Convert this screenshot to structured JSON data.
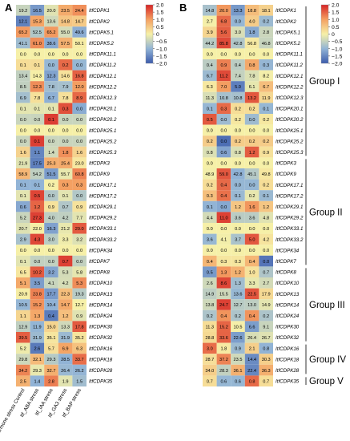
{
  "chart_data": [
    {
      "type": "heatmap",
      "panel": "A",
      "columns": [
        "Itf_hormone stress Control",
        "Itf_ABA stress",
        "Itf_IAA stress",
        "Itf_GA3 stress",
        "Itf_BAP stress"
      ],
      "rows": [
        "ItfCDPK1",
        "ItfCDPK2",
        "ItfCDPK5.1",
        "ItfCDPK5.2",
        "ItfCDPK11.1",
        "ItfCDPK11.2",
        "ItfCDPK12.1",
        "ItfCDPK12.2",
        "ItfCDPK12.3",
        "ItfCDPK20.1",
        "ItfCDPK20.2",
        "ItfCDPK25.1",
        "ItfCDPK25.2",
        "ItfCDPK25.3",
        "ItfCDPK3",
        "ItfCDPK9",
        "ItfCDPK17.1",
        "ItfCDPK17.2",
        "ItfCDPK29.1",
        "ItfCDPK29.2",
        "ItfCDPK33.1",
        "ItfCDPK33.2",
        "ItfCDPK34",
        "ItfCDPK7",
        "ItfCDPK8",
        "ItfCDPK10",
        "ItfCDPK13",
        "ItfCDPK14",
        "ItfCDPK24",
        "ItfCDPK30",
        "ItfCDPK32",
        "ItfCDPK16",
        "ItfCDPK18",
        "ItfCDPK28",
        "ItfCDPK35"
      ],
      "values": [
        [
          "19.2",
          "16.5",
          "20.0",
          "23.5",
          "24.4"
        ],
        [
          "12.1",
          "15.3",
          "13.6",
          "14.8",
          "14.7"
        ],
        [
          "65.2",
          "52.5",
          "65.2",
          "55.0",
          "49.6"
        ],
        [
          "41.1",
          "61.0",
          "38.6",
          "57.5",
          "50.1"
        ],
        [
          "0.0",
          "0.0",
          "0.0",
          "0.0",
          "0.0"
        ],
        [
          "0.1",
          "0.1",
          "0.0",
          "0.2",
          "0.0"
        ],
        [
          "13.4",
          "14.3",
          "12.3",
          "14.6",
          "16.8"
        ],
        [
          "8.5",
          "12.3",
          "7.8",
          "7.9",
          "12.0"
        ],
        [
          "6.9",
          "7.8",
          "6.7",
          "7.8",
          "8.9"
        ],
        [
          "0.1",
          "0.1",
          "0.1",
          "0.3",
          "0.0"
        ],
        [
          "0.0",
          "0.0",
          "0.1",
          "0.0",
          "0.0"
        ],
        [
          "0.0",
          "0.0",
          "0.0",
          "0.0",
          "0.0"
        ],
        [
          "0.0",
          "0.1",
          "0.0",
          "0.0",
          "0.0"
        ],
        [
          "1.6",
          "1.1",
          "1.4",
          "1.8",
          "1.6"
        ],
        [
          "21.9",
          "17.5",
          "25.3",
          "25.4",
          "23.0"
        ],
        [
          "58.9",
          "54.2",
          "51.5",
          "55.7",
          "60.8"
        ],
        [
          "0.1",
          "0.1",
          "0.2",
          "0.3",
          "0.3"
        ],
        [
          "0.1",
          "0.5",
          "0.0",
          "0.1",
          "0.0"
        ],
        [
          "0.6",
          "1.2",
          "0.9",
          "0.7",
          "0.9"
        ],
        [
          "5.2",
          "27.3",
          "4.0",
          "4.2",
          "7.7"
        ],
        [
          "20.7",
          "22.0",
          "16.3",
          "21.2",
          "29.0"
        ],
        [
          "2.9",
          "4.3",
          "3.0",
          "3.3",
          "3.2"
        ],
        [
          "0.0",
          "0.0",
          "0.0",
          "0.0",
          "0.0"
        ],
        [
          "0.1",
          "0.0",
          "0.0",
          "0.7",
          "0.0"
        ],
        [
          "6.5",
          "10.2",
          "3.2",
          "5.3",
          "5.8"
        ],
        [
          "5.1",
          "3.5",
          "4.1",
          "4.2",
          "5.3"
        ],
        [
          "20.9",
          "23.8",
          "17.7",
          "22.3",
          "19.3"
        ],
        [
          "10.5",
          "15.2",
          "10.4",
          "14.7",
          "12.7"
        ],
        [
          "1.1",
          "1.3",
          "0.4",
          "1.2",
          "0.9"
        ],
        [
          "12.9",
          "11.9",
          "15.0",
          "13.3",
          "17.8"
        ],
        [
          "39.5",
          "31.9",
          "35.1",
          "31.9",
          "35.2"
        ],
        [
          "5.2",
          "2.6",
          "5.7",
          "6.9",
          "6.3"
        ],
        [
          "29.8",
          "32.1",
          "29.3",
          "28.5",
          "33.7"
        ],
        [
          "34.2",
          "29.3",
          "32.7",
          "26.4",
          "26.2"
        ],
        [
          "2.5",
          "1.4",
          "2.8",
          "1.9",
          "1.5"
        ]
      ],
      "colorbar": {
        "ticks": [
          "2.0",
          "1.5",
          "1.0",
          "0.5",
          "0",
          "−0.5",
          "−1.0",
          "−1.5",
          "−2.0"
        ],
        "min": -2.0,
        "max": 2.0
      }
    },
    {
      "type": "heatmap",
      "panel": "B",
      "rows": [
        "ItfCDPK1",
        "ItfCDPK2",
        "ItfCDPK5.1",
        "ItfCDPK5.2",
        "ItfCDPK11.1",
        "ItfCDPK11.2",
        "ItfCDPK12.1",
        "ItfCDPK12.2",
        "ItfCDPK12.3",
        "ItfCDPK20.1",
        "ItfCDPK20.2",
        "ItfCDPK25.1",
        "ItfCDPK25.2",
        "ItfCDPK25.3",
        "ItfCDPK3",
        "ItfCDPK9",
        "ItfCDPK17.1",
        "ItfCDPK17.2",
        "ItfCDPK29.1",
        "ItfCDPK29.2",
        "ItfCDPK33.1",
        "ItfCDPK33.2",
        "ItfCDPK34",
        "ItfCDPK7",
        "ItfCDPK8",
        "ItfCDPK10",
        "ItfCDPK13",
        "ItfCDPK14",
        "ItfCDPK24",
        "ItfCDPK30",
        "ItfCDPK32",
        "ItfCDPK16",
        "ItfCDPK18",
        "ItfCDPK28",
        "ItfCDPK35"
      ],
      "values": [
        [
          "14.8",
          "20.0",
          "13.3",
          "18.8",
          "18.1"
        ],
        [
          "2.7",
          "6.8",
          "0.0",
          "4.0",
          "0.2"
        ],
        [
          "3.9",
          "5.6",
          "3.0",
          "1.8",
          "2.8"
        ],
        [
          "44.2",
          "85.8",
          "42.8",
          "56.8",
          "46.8"
        ],
        [
          "0.0",
          "0.0",
          "0.0",
          "0.0",
          "0.0"
        ],
        [
          "0.4",
          "0.9",
          "0.4",
          "0.8",
          "0.3"
        ],
        [
          "6.7",
          "11.2",
          "7.4",
          "7.8",
          "8.2"
        ],
        [
          "6.3",
          "7.0",
          "5.0",
          "6.1",
          "6.7"
        ],
        [
          "11.3",
          "10.8",
          "10.8",
          "13.2",
          "11.9"
        ],
        [
          "0.1",
          "0.3",
          "0.2",
          "0.2",
          "0.1"
        ],
        [
          "0.5",
          "0.0",
          "0.2",
          "0.0",
          "0.2"
        ],
        [
          "0.0",
          "0.0",
          "0.0",
          "0.0",
          "0.0"
        ],
        [
          "0.2",
          "0.0",
          "0.2",
          "0.2",
          "0.2"
        ],
        [
          "0.8",
          "0.6",
          "0.8",
          "1.2",
          "0.9"
        ],
        [
          "0.0",
          "0.0",
          "0.0",
          "0.0",
          "0.0"
        ],
        [
          "48.9",
          "59.0",
          "42.8",
          "45.1",
          "49.8"
        ],
        [
          "0.2",
          "0.4",
          "0.0",
          "0.0",
          "0.2"
        ],
        [
          "0.3",
          "0.4",
          "0.1",
          "0.2",
          "0.1"
        ],
        [
          "0.1",
          "0.0",
          "1.2",
          "1.6",
          "1.2"
        ],
        [
          "4.4",
          "11.0",
          "3.6",
          "3.6",
          "4.8"
        ],
        [
          "0.0",
          "0.0",
          "0.0",
          "0.0",
          "0.0"
        ],
        [
          "3.6",
          "4.1",
          "3.7",
          "5.0",
          "4.2"
        ],
        [
          "0.0",
          "0.0",
          "0.0",
          "0.0",
          "0.0"
        ],
        [
          "0.4",
          "0.3",
          "0.3",
          "0.4",
          "0.0"
        ],
        [
          "0.5",
          "1.3",
          "1.2",
          "1.0",
          "0.7"
        ],
        [
          "2.6",
          "8.6",
          "1.3",
          "3.3",
          "2.7"
        ],
        [
          "14.9",
          "15.5",
          "13.6",
          "22.5",
          "17.9"
        ],
        [
          "13.8",
          "24.7",
          "12.7",
          "13.0",
          "14.9"
        ],
        [
          "0.2",
          "0.4",
          "0.2",
          "0.4",
          "0.2"
        ],
        [
          "11.3",
          "15.2",
          "10.5",
          "6.6",
          "9.1"
        ],
        [
          "28.8",
          "33.6",
          "22.6",
          "26.4",
          "26.7"
        ],
        [
          "3.0",
          "1.8",
          "0.9",
          "2.1",
          "0.8"
        ],
        [
          "28.7",
          "37.2",
          "23.5",
          "14.4",
          "30.3"
        ],
        [
          "34.0",
          "28.3",
          "36.1",
          "22.4",
          "36.3"
        ],
        [
          "0.7",
          "0.6",
          "0.6",
          "0.8",
          "0.7"
        ]
      ],
      "colorbar": {
        "ticks": [
          "2.0",
          "1.5",
          "1.0",
          "0.5",
          "0",
          "−0.5",
          "−1.0",
          "−1.5",
          "−2.0"
        ],
        "min": -2.0,
        "max": 2.0
      },
      "groups": [
        {
          "name": "Group I",
          "from": 0,
          "to": 13
        },
        {
          "name": "Group II",
          "from": 14,
          "to": 23
        },
        {
          "name": "Group III",
          "from": 24,
          "to": 30
        },
        {
          "name": "Group IV",
          "from": 31,
          "to": 33
        },
        {
          "name": "Group V",
          "from": 34,
          "to": 34
        }
      ]
    }
  ],
  "labels": {
    "panel_a": "A",
    "panel_b": "B"
  }
}
